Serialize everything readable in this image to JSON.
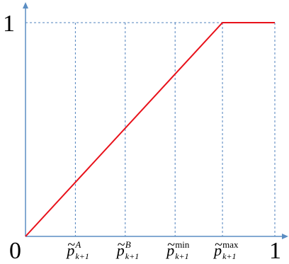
{
  "chart_data": {
    "type": "line",
    "title": "",
    "xlabel": "",
    "ylabel": "",
    "xlim": [
      0,
      1
    ],
    "ylim": [
      0,
      1
    ],
    "grid": true,
    "series": [
      {
        "color": "#e8111a",
        "x": [
          0,
          0.79,
          1
        ],
        "y": [
          0,
          1,
          1
        ]
      }
    ],
    "x_ticks": [
      {
        "value": 0,
        "label": "0"
      },
      {
        "value": 0.2,
        "label": "p̃_{k+1}^{A}",
        "base": "p",
        "tilde": "~",
        "sub": "k+1",
        "sup": "A",
        "sup_italic": true
      },
      {
        "value": 0.4,
        "label": "p̃_{k+1}^{B}",
        "base": "p",
        "tilde": "~",
        "sub": "k+1",
        "sup": "B",
        "sup_italic": true
      },
      {
        "value": 0.6,
        "label": "p̃_{k+1}^{min}",
        "base": "p",
        "tilde": "~",
        "sub": "k+1",
        "sup": "min",
        "sup_italic": false
      },
      {
        "value": 0.79,
        "label": "p̃_{k+1}^{max}",
        "base": "p",
        "tilde": "~",
        "sub": "k+1",
        "sup": "max",
        "sup_italic": false
      },
      {
        "value": 1,
        "label": "1"
      }
    ],
    "y_ticks": [
      {
        "value": 1,
        "label": "1"
      }
    ],
    "colors": {
      "axis": "#5b8ec3",
      "grid": "#4f81bd",
      "series": "#e8111a"
    }
  }
}
